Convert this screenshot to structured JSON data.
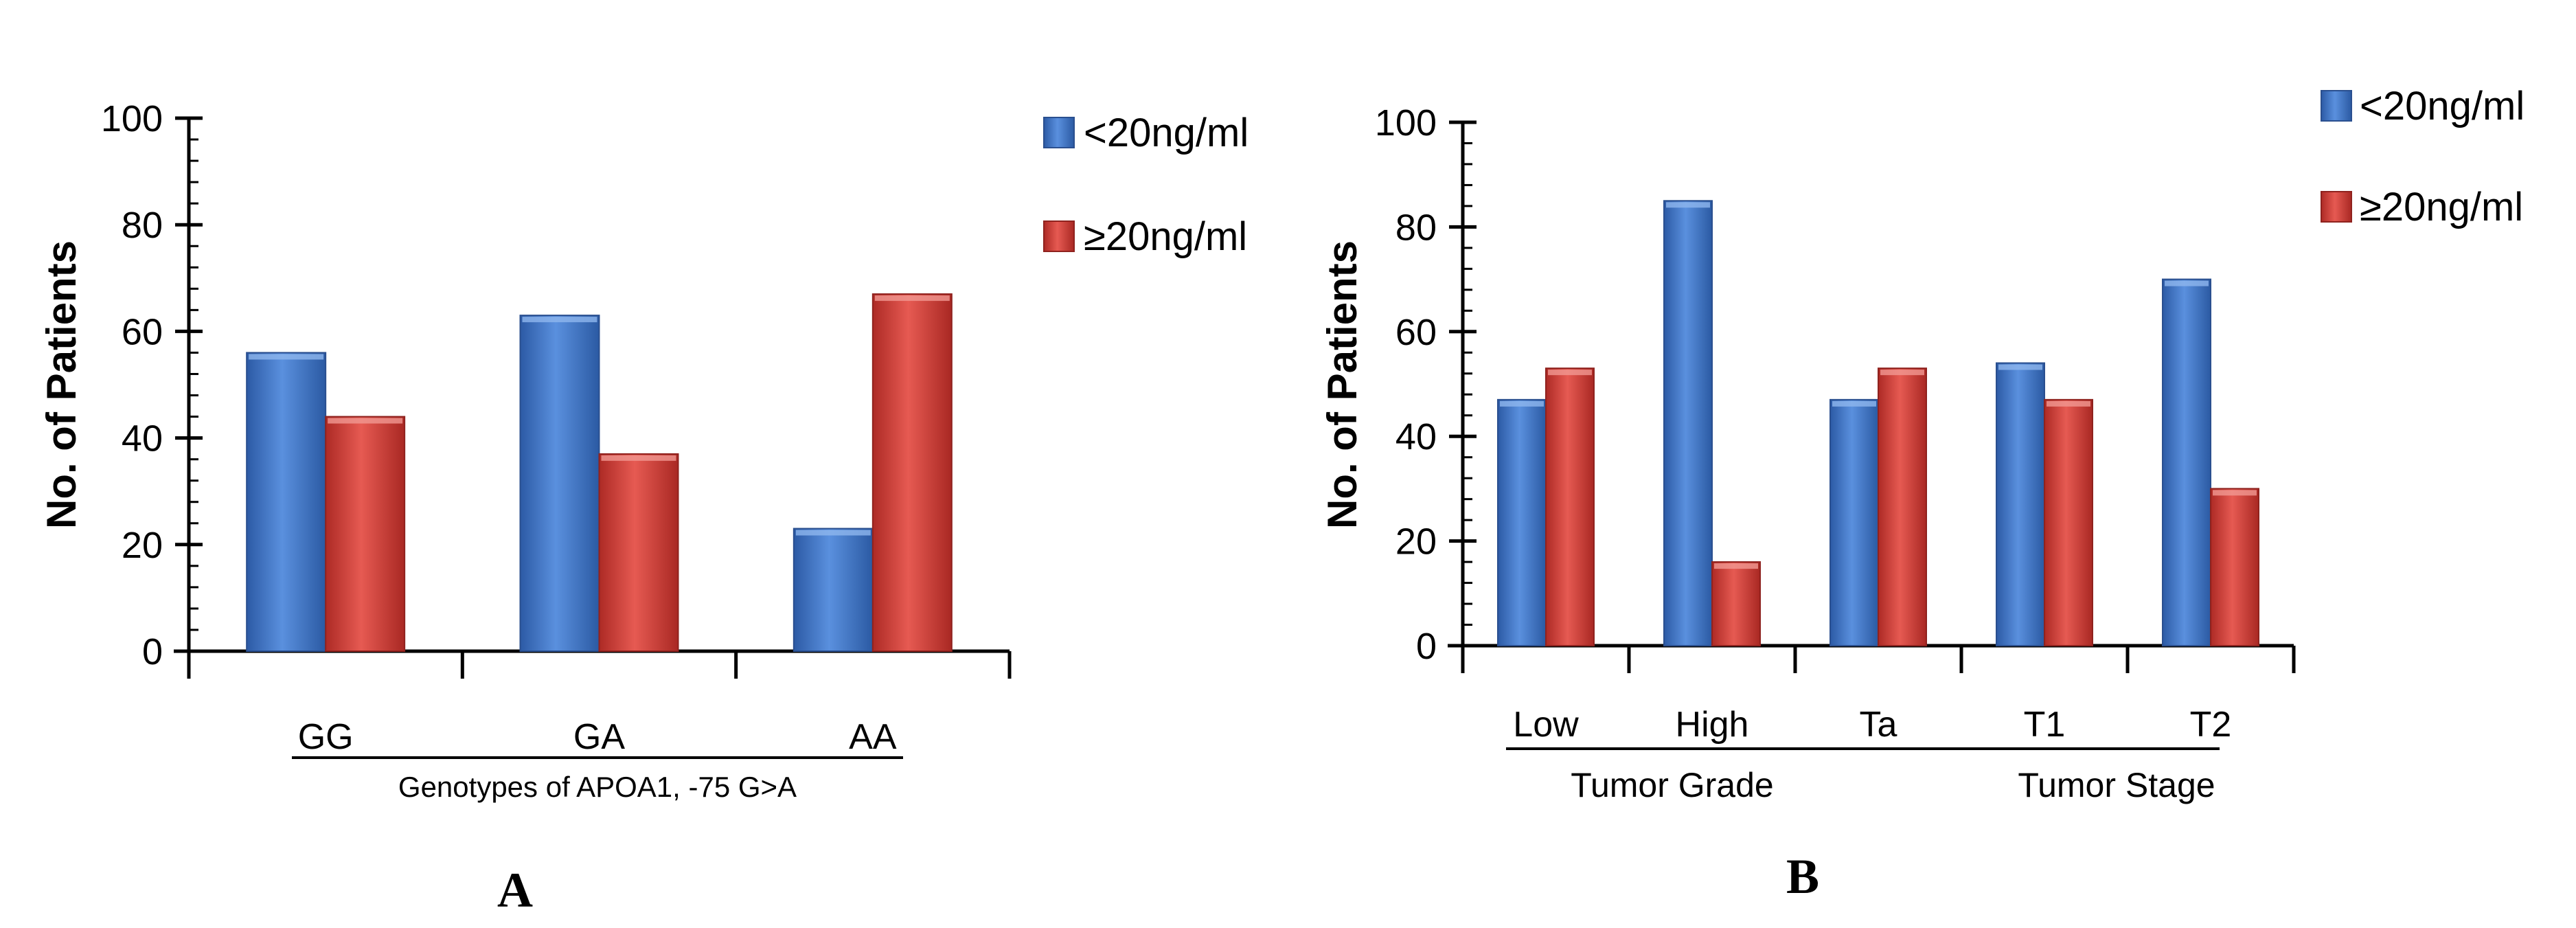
{
  "chart_data": [
    {
      "type": "bar",
      "panel_label": "A",
      "xlabel": "Genotypes of APOA1, -75 G>A",
      "ylabel": "No. of Patients",
      "ylim": [
        0,
        100
      ],
      "yticks": [
        0,
        20,
        40,
        60,
        80,
        100
      ],
      "categories": [
        "GG",
        "GA",
        "AA"
      ],
      "series": [
        {
          "name": "<20ng/ml",
          "color": "#3f74c6",
          "values": [
            56,
            63,
            23
          ]
        },
        {
          "name": "≥20ng/ml",
          "color": "#d23a34",
          "values": [
            44,
            37,
            67
          ]
        }
      ],
      "legend_position": "top-right"
    },
    {
      "type": "bar",
      "panel_label": "B",
      "ylabel": "No. of Patients",
      "ylim": [
        0,
        100
      ],
      "yticks": [
        0,
        20,
        40,
        60,
        80,
        100
      ],
      "categories": [
        "Low",
        "High",
        "Ta",
        "T1",
        "T2"
      ],
      "category_groups": [
        {
          "label": "Tumor Grade",
          "members": [
            "Low",
            "High"
          ]
        },
        {
          "label": "Tumor Stage",
          "members": [
            "Ta",
            "T1",
            "T2"
          ]
        }
      ],
      "series": [
        {
          "name": "<20ng/ml",
          "color": "#3f74c6",
          "values": [
            47,
            85,
            47,
            54,
            70
          ]
        },
        {
          "name": "≥20ng/ml",
          "color": "#d23a34",
          "values": [
            53,
            16,
            53,
            47,
            30
          ]
        }
      ],
      "legend_position": "top-right"
    }
  ]
}
